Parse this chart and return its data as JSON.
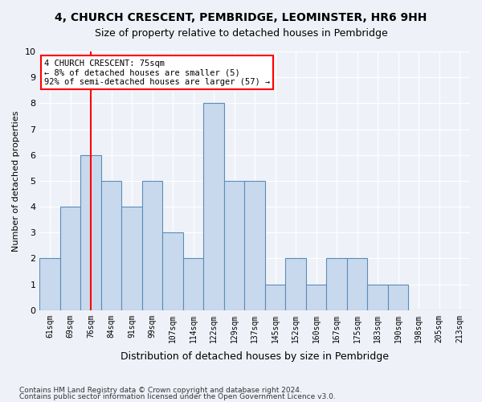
{
  "title1": "4, CHURCH CRESCENT, PEMBRIDGE, LEOMINSTER, HR6 9HH",
  "title2": "Size of property relative to detached houses in Pembridge",
  "xlabel": "Distribution of detached houses by size in Pembridge",
  "ylabel": "Number of detached properties",
  "categories": [
    "61sqm",
    "69sqm",
    "76sqm",
    "84sqm",
    "91sqm",
    "99sqm",
    "107sqm",
    "114sqm",
    "122sqm",
    "129sqm",
    "137sqm",
    "145sqm",
    "152sqm",
    "160sqm",
    "167sqm",
    "175sqm",
    "183sqm",
    "190sqm",
    "198sqm",
    "205sqm",
    "213sqm"
  ],
  "values": [
    2,
    4,
    6,
    5,
    4,
    5,
    3,
    2,
    8,
    5,
    5,
    1,
    2,
    1,
    2,
    2,
    1,
    1,
    0,
    0,
    0
  ],
  "bar_color": "#c9d9ed",
  "bar_edgecolor": "#5b8db8",
  "highlight_index": 2,
  "highlight_color": "#c9d9ed",
  "highlight_edgecolor": "#c9d9ed",
  "annotation_text": "4 CHURCH CRESCENT: 75sqm\n← 8% of detached houses are smaller (5)\n92% of semi-detached houses are larger (57) →",
  "annotation_box_edgecolor": "red",
  "vline_color": "red",
  "ylim": [
    0,
    10
  ],
  "yticks": [
    0,
    1,
    2,
    3,
    4,
    5,
    6,
    7,
    8,
    9,
    10
  ],
  "footer1": "Contains HM Land Registry data © Crown copyright and database right 2024.",
  "footer2": "Contains public sector information licensed under the Open Government Licence v3.0.",
  "bg_color": "#eef2f8",
  "plot_bg_color": "#eef2f8"
}
